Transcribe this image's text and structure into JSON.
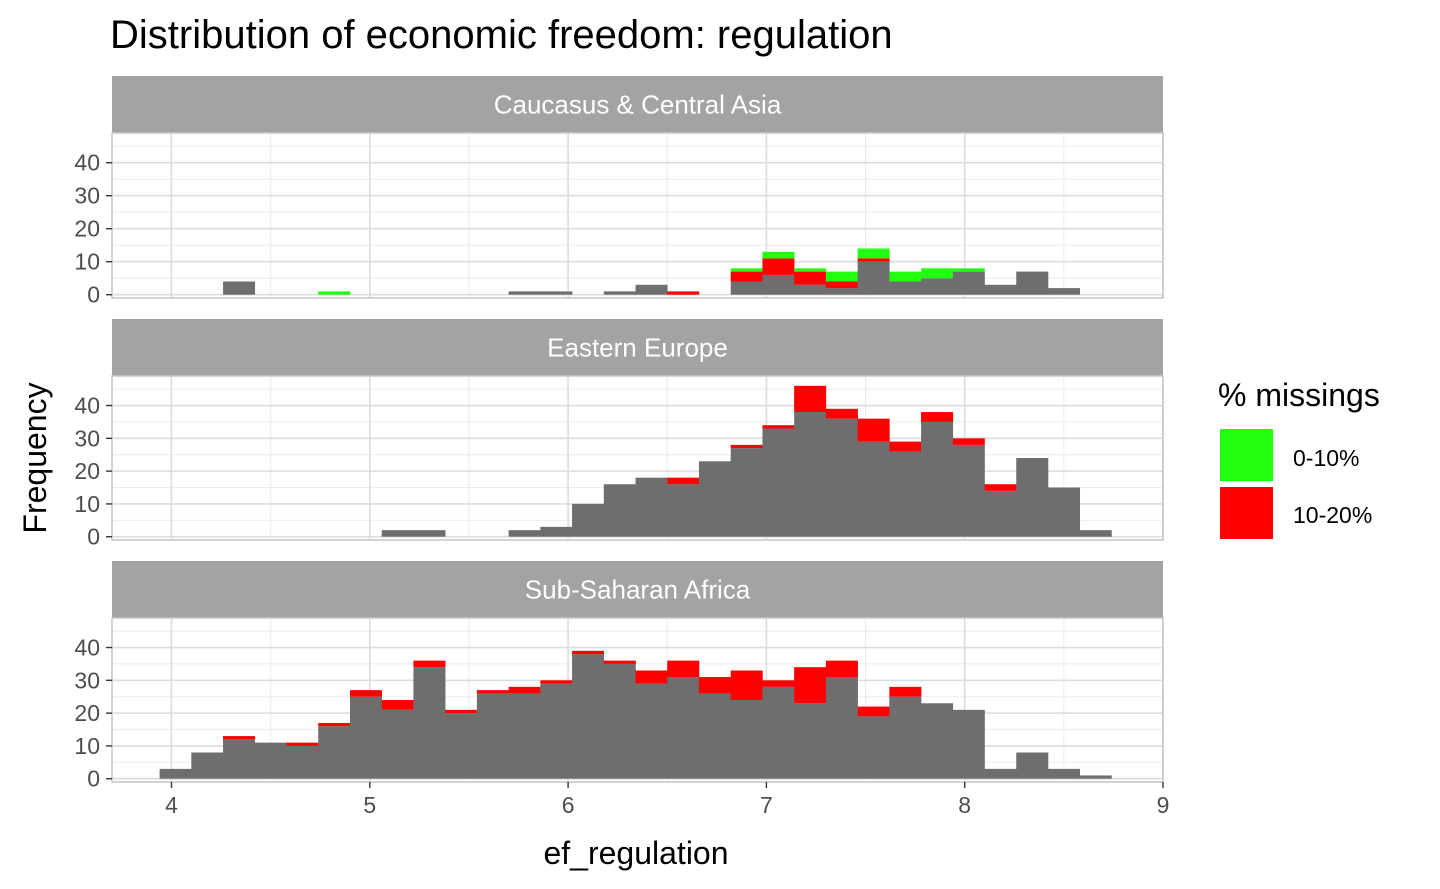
{
  "chart_data": {
    "type": "bar",
    "subtype": "stacked-histogram-faceted",
    "title": "Distribution of economic freedom: regulation",
    "xlabel": "ef_regulation",
    "ylabel": "Frequency",
    "xlim": [
      3.7,
      9.0
    ],
    "ylim": [
      -1,
      49
    ],
    "x_ticks": [
      4,
      5,
      6,
      7,
      8,
      9
    ],
    "y_ticks": [
      0,
      10,
      20,
      30,
      40
    ],
    "grid": true,
    "bin_width": 0.16,
    "bin_start": 3.94,
    "bin_count": 31,
    "legend": {
      "title": "% missings",
      "position": "right",
      "items": [
        {
          "label": "0-10%",
          "color": "#22FF11"
        },
        {
          "label": "10-20%",
          "color": "#FF0000"
        }
      ]
    },
    "base_color": "#6E6E6E",
    "panels": [
      {
        "name": "Caucasus & Central Asia",
        "base": [
          0,
          0,
          4,
          0,
          0,
          0,
          0,
          0,
          0,
          0,
          0,
          1,
          1,
          0,
          1,
          3,
          0,
          0,
          4,
          6,
          3,
          2,
          10,
          4,
          5,
          7,
          3,
          7,
          2,
          0,
          0
        ],
        "red": [
          0,
          0,
          0,
          0,
          0,
          0,
          0,
          0,
          0,
          0,
          0,
          0,
          0,
          0,
          0,
          0,
          1,
          0,
          3,
          5,
          4,
          2,
          1,
          0,
          0,
          0,
          0,
          0,
          0,
          0,
          0
        ],
        "green": [
          0,
          0,
          0,
          0,
          0,
          1,
          0,
          0,
          0,
          0,
          0,
          0,
          0,
          0,
          0,
          0,
          0,
          0,
          1,
          2,
          1,
          3,
          3,
          3,
          3,
          1,
          0,
          0,
          0,
          0,
          0
        ]
      },
      {
        "name": "Eastern Europe",
        "base": [
          0,
          0,
          0,
          0,
          0,
          0,
          0,
          2,
          2,
          0,
          0,
          2,
          3,
          10,
          16,
          18,
          16,
          23,
          27,
          33,
          38,
          36,
          29,
          26,
          35,
          28,
          14,
          24,
          15,
          2,
          0
        ],
        "red": [
          0,
          0,
          0,
          0,
          0,
          0,
          0,
          0,
          0,
          0,
          0,
          0,
          0,
          0,
          0,
          0,
          2,
          0,
          1,
          1,
          8,
          3,
          7,
          3,
          3,
          2,
          2,
          0,
          0,
          0,
          0
        ],
        "green": [
          0,
          0,
          0,
          0,
          0,
          0,
          0,
          0,
          0,
          0,
          0,
          0,
          0,
          0,
          0,
          0,
          0,
          0,
          0,
          0,
          0,
          0,
          0,
          0,
          0,
          0,
          0,
          0,
          0,
          0,
          0
        ]
      },
      {
        "name": "Sub-Saharan Africa",
        "base": [
          3,
          8,
          12,
          11,
          10,
          16,
          25,
          21,
          34,
          20,
          26,
          26,
          29,
          38,
          35,
          29,
          31,
          26,
          24,
          28,
          23,
          31,
          19,
          25,
          23,
          21,
          3,
          8,
          3,
          1,
          0
        ],
        "red": [
          0,
          0,
          1,
          0,
          1,
          1,
          2,
          3,
          2,
          1,
          1,
          2,
          1,
          1,
          1,
          4,
          5,
          5,
          9,
          2,
          11,
          5,
          3,
          3,
          0,
          0,
          0,
          0,
          0,
          0,
          0
        ],
        "green": [
          0,
          0,
          0,
          0,
          0,
          0,
          0,
          0,
          0,
          0,
          0,
          0,
          0,
          0,
          0,
          0,
          0,
          0,
          0,
          0,
          0,
          0,
          0,
          0,
          0,
          0,
          0,
          0,
          0,
          0,
          0
        ]
      }
    ]
  }
}
